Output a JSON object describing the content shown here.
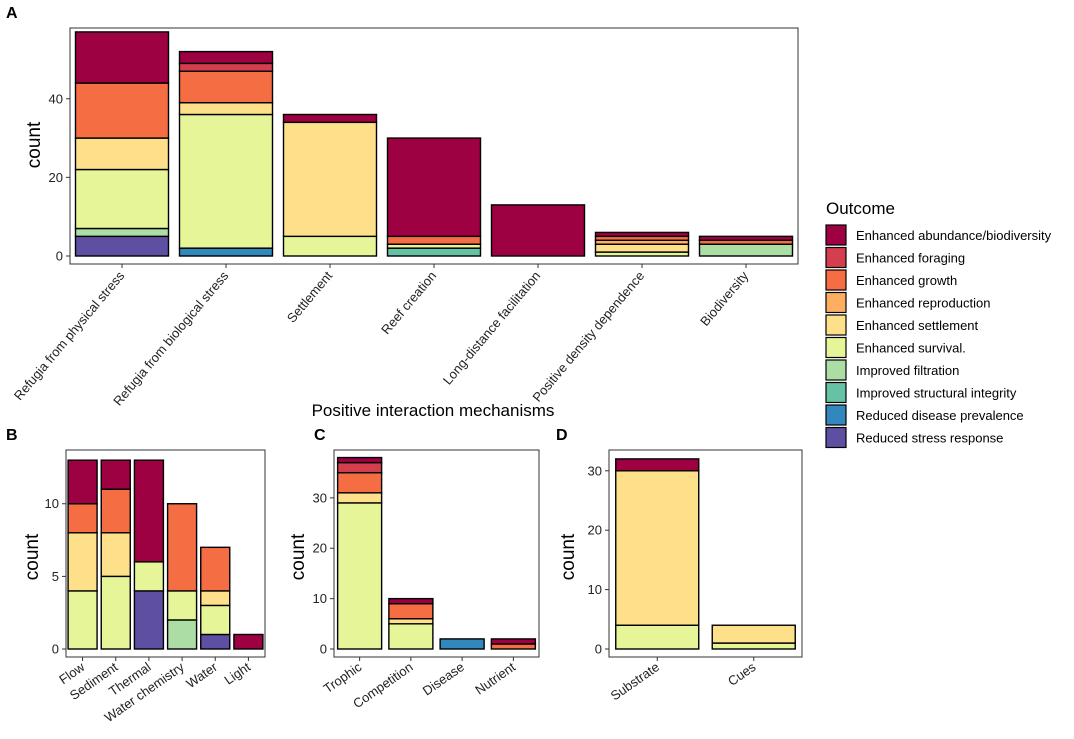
{
  "figure": {
    "x_axis_title": "Positive interaction mechanisms",
    "legend_title": "Outcome"
  },
  "outcomes": [
    {
      "name": "Enhanced abundance/biodiversity",
      "color": "#9E0142"
    },
    {
      "name": "Enhanced foraging",
      "color": "#D53E4F"
    },
    {
      "name": "Enhanced growth",
      "color": "#F46D43"
    },
    {
      "name": "Enhanced reproduction",
      "color": "#FDAE61"
    },
    {
      "name": "Enhanced settlement",
      "color": "#FEE08B"
    },
    {
      "name": "Enhanced survival.",
      "color": "#E6F598"
    },
    {
      "name": "Improved filtration",
      "color": "#ABDDA4"
    },
    {
      "name": "Improved structural integrity",
      "color": "#66C2A5"
    },
    {
      "name": "Reduced disease prevalence",
      "color": "#3288BD"
    },
    {
      "name": "Reduced stress response",
      "color": "#5E4FA2"
    }
  ],
  "chart_data": [
    {
      "panel": "A",
      "type": "bar",
      "stacked": true,
      "ylabel": "count",
      "ylim": [
        0,
        58
      ],
      "yticks": [
        0,
        20,
        40
      ],
      "categories": [
        "Refugia from physical stress",
        "Refugia from biological stress",
        "Settlement",
        "Reef creation",
        "Long-distance facilitation",
        "Positive density dependence",
        "Biodiversity"
      ],
      "series": [
        {
          "name": "Enhanced abundance/biodiversity",
          "values": [
            13,
            3,
            2,
            25,
            13,
            1,
            1
          ]
        },
        {
          "name": "Enhanced foraging",
          "values": [
            0,
            2,
            0,
            0,
            0,
            0,
            0
          ]
        },
        {
          "name": "Enhanced growth",
          "values": [
            14,
            8,
            0,
            2,
            0,
            1,
            1
          ]
        },
        {
          "name": "Enhanced reproduction",
          "values": [
            0,
            0,
            0,
            0,
            0,
            1,
            0
          ]
        },
        {
          "name": "Enhanced settlement",
          "values": [
            8,
            3,
            29,
            0,
            0,
            2,
            0
          ]
        },
        {
          "name": "Enhanced survival.",
          "values": [
            15,
            34,
            5,
            1,
            0,
            1,
            0
          ]
        },
        {
          "name": "Improved filtration",
          "values": [
            2,
            0,
            0,
            0,
            0,
            0,
            3
          ]
        },
        {
          "name": "Improved structural integrity",
          "values": [
            0,
            0,
            0,
            2,
            0,
            0,
            0
          ]
        },
        {
          "name": "Reduced disease prevalence",
          "values": [
            0,
            2,
            0,
            0,
            0,
            0,
            0
          ]
        },
        {
          "name": "Reduced stress response",
          "values": [
            5,
            0,
            0,
            0,
            0,
            0,
            0
          ]
        }
      ]
    },
    {
      "panel": "B",
      "type": "bar",
      "stacked": true,
      "ylabel": "count",
      "ylim": [
        0,
        13.7
      ],
      "yticks": [
        0,
        5,
        10
      ],
      "categories": [
        "Flow",
        "Sediment",
        "Thermal",
        "Water chemistry",
        "Water",
        "Light"
      ],
      "series": [
        {
          "name": "Enhanced abundance/biodiversity",
          "values": [
            3,
            2,
            7,
            0,
            0,
            1
          ]
        },
        {
          "name": "Enhanced foraging",
          "values": [
            0,
            0,
            0,
            0,
            0,
            0
          ]
        },
        {
          "name": "Enhanced growth",
          "values": [
            2,
            3,
            0,
            6,
            3,
            0
          ]
        },
        {
          "name": "Enhanced reproduction",
          "values": [
            0,
            0,
            0,
            0,
            0,
            0
          ]
        },
        {
          "name": "Enhanced settlement",
          "values": [
            4,
            3,
            0,
            0,
            1,
            0
          ]
        },
        {
          "name": "Enhanced survival.",
          "values": [
            4,
            5,
            2,
            2,
            2,
            0
          ]
        },
        {
          "name": "Improved filtration",
          "values": [
            0,
            0,
            0,
            2,
            0,
            0
          ]
        },
        {
          "name": "Improved structural integrity",
          "values": [
            0,
            0,
            0,
            0,
            0,
            0
          ]
        },
        {
          "name": "Reduced disease prevalence",
          "values": [
            0,
            0,
            0,
            0,
            0,
            0
          ]
        },
        {
          "name": "Reduced stress response",
          "values": [
            0,
            0,
            4,
            0,
            1,
            0
          ]
        }
      ]
    },
    {
      "panel": "C",
      "type": "bar",
      "stacked": true,
      "ylabel": "count",
      "ylim": [
        0,
        39.5
      ],
      "yticks": [
        0,
        10,
        20,
        30
      ],
      "categories": [
        "Trophic",
        "Competition",
        "Disease",
        "Nutrient"
      ],
      "series": [
        {
          "name": "Enhanced abundance/biodiversity",
          "values": [
            1,
            1,
            0,
            1
          ]
        },
        {
          "name": "Enhanced foraging",
          "values": [
            2,
            0,
            0,
            0
          ]
        },
        {
          "name": "Enhanced growth",
          "values": [
            4,
            3,
            0,
            1
          ]
        },
        {
          "name": "Enhanced reproduction",
          "values": [
            0,
            0,
            0,
            0
          ]
        },
        {
          "name": "Enhanced settlement",
          "values": [
            2,
            1,
            0,
            0
          ]
        },
        {
          "name": "Enhanced survival.",
          "values": [
            29,
            5,
            0,
            0
          ]
        },
        {
          "name": "Improved filtration",
          "values": [
            0,
            0,
            0,
            0
          ]
        },
        {
          "name": "Improved structural integrity",
          "values": [
            0,
            0,
            0,
            0
          ]
        },
        {
          "name": "Reduced disease prevalence",
          "values": [
            0,
            0,
            2,
            0
          ]
        },
        {
          "name": "Reduced stress response",
          "values": [
            0,
            0,
            0,
            0
          ]
        }
      ]
    },
    {
      "panel": "D",
      "type": "bar",
      "stacked": true,
      "ylabel": "count",
      "ylim": [
        0,
        33.5
      ],
      "yticks": [
        0,
        10,
        20,
        30
      ],
      "categories": [
        "Substrate",
        "Cues"
      ],
      "series": [
        {
          "name": "Enhanced abundance/biodiversity",
          "values": [
            2,
            0
          ]
        },
        {
          "name": "Enhanced foraging",
          "values": [
            0,
            0
          ]
        },
        {
          "name": "Enhanced growth",
          "values": [
            0,
            0
          ]
        },
        {
          "name": "Enhanced reproduction",
          "values": [
            0,
            0
          ]
        },
        {
          "name": "Enhanced settlement",
          "values": [
            26,
            3
          ]
        },
        {
          "name": "Enhanced survival.",
          "values": [
            4,
            1
          ]
        },
        {
          "name": "Improved filtration",
          "values": [
            0,
            0
          ]
        },
        {
          "name": "Improved structural integrity",
          "values": [
            0,
            0
          ]
        },
        {
          "name": "Reduced disease prevalence",
          "values": [
            0,
            0
          ]
        },
        {
          "name": "Reduced stress response",
          "values": [
            0,
            0
          ]
        }
      ]
    }
  ]
}
